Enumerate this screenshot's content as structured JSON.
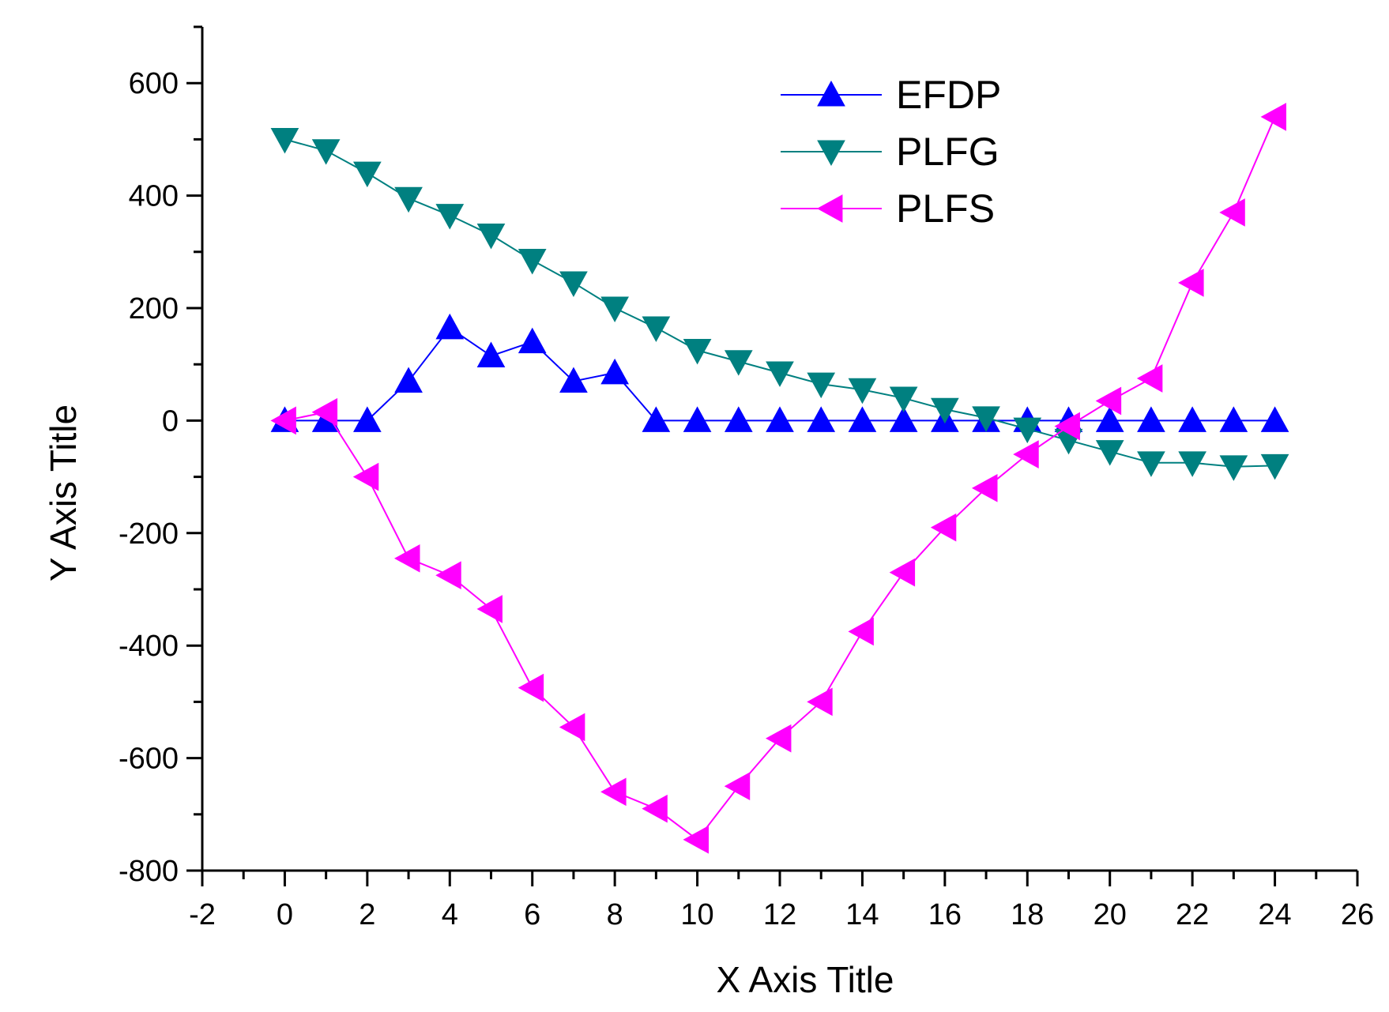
{
  "chart_data": {
    "type": "line",
    "title": "",
    "xlabel": "X Axis Title",
    "ylabel": "Y Axis Title",
    "xlim": [
      -2,
      26
    ],
    "ylim": [
      -800,
      700
    ],
    "xticks": [
      -2,
      0,
      2,
      4,
      6,
      8,
      10,
      12,
      14,
      16,
      18,
      20,
      22,
      24,
      26
    ],
    "yticks": [
      -800,
      -600,
      -400,
      -200,
      0,
      200,
      400,
      600
    ],
    "grid": false,
    "legend_position": "top-right",
    "x": [
      0,
      1,
      2,
      3,
      4,
      5,
      6,
      7,
      8,
      9,
      10,
      11,
      12,
      13,
      14,
      15,
      16,
      17,
      18,
      19,
      20,
      21,
      22,
      23,
      24
    ],
    "series": [
      {
        "name": "EFDP",
        "color": "#0000ff",
        "marker": "triangle-up",
        "values": [
          0,
          0,
          0,
          70,
          165,
          115,
          140,
          70,
          85,
          0,
          0,
          0,
          0,
          0,
          0,
          0,
          0,
          0,
          0,
          0,
          0,
          0,
          0,
          0,
          0
        ]
      },
      {
        "name": "PLFG",
        "color": "#008080",
        "marker": "triangle-down",
        "values": [
          500,
          480,
          440,
          395,
          365,
          330,
          285,
          245,
          200,
          165,
          125,
          105,
          85,
          65,
          55,
          40,
          20,
          5,
          -15,
          -35,
          -55,
          -75,
          -75,
          -82,
          -80
        ]
      },
      {
        "name": "PLFS",
        "color": "#ff00ff",
        "marker": "triangle-left",
        "values": [
          0,
          15,
          -100,
          -245,
          -275,
          -335,
          -475,
          -545,
          -660,
          -690,
          -745,
          -650,
          -565,
          -500,
          -375,
          -270,
          -190,
          -120,
          -60,
          -10,
          35,
          75,
          245,
          370,
          540
        ]
      }
    ]
  }
}
